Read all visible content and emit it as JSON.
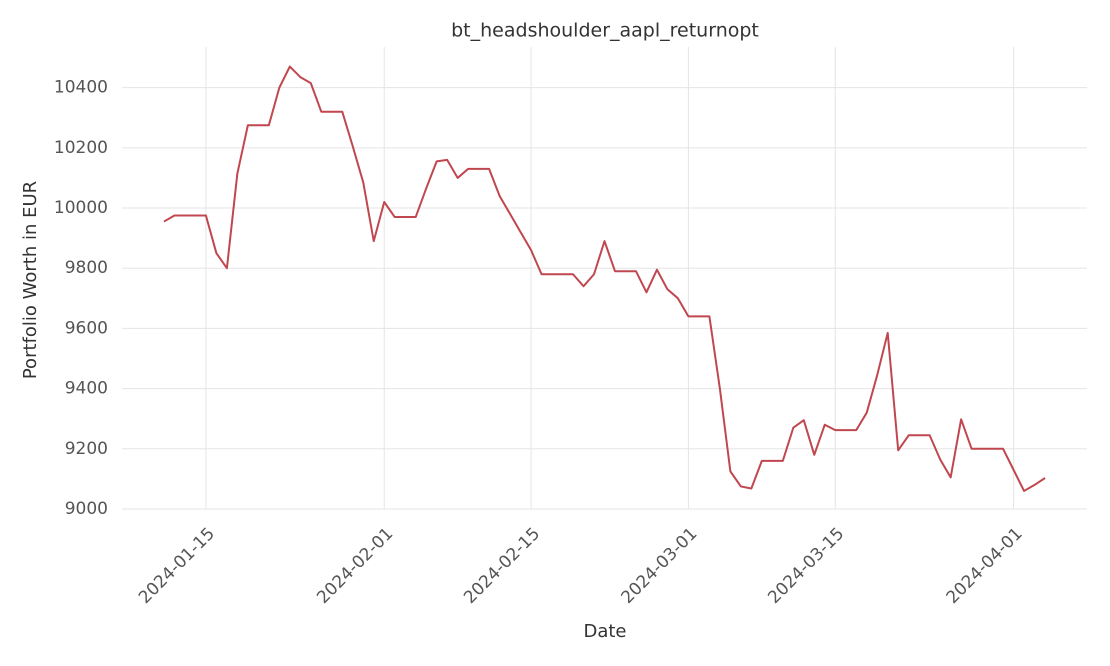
{
  "chart_data": {
    "type": "line",
    "title": "bt_headshoulder_aapl_returnopt",
    "x_label": "Date",
    "y_label": "Portfolio Worth in EUR",
    "x": [
      "2024-01-11",
      "2024-01-12",
      "2024-01-13",
      "2024-01-14",
      "2024-01-15",
      "2024-01-16",
      "2024-01-17",
      "2024-01-18",
      "2024-01-19",
      "2024-01-20",
      "2024-01-21",
      "2024-01-22",
      "2024-01-23",
      "2024-01-24",
      "2024-01-25",
      "2024-01-26",
      "2024-01-27",
      "2024-01-28",
      "2024-01-29",
      "2024-01-30",
      "2024-01-31",
      "2024-02-01",
      "2024-02-02",
      "2024-02-03",
      "2024-02-04",
      "2024-02-05",
      "2024-02-06",
      "2024-02-07",
      "2024-02-08",
      "2024-02-09",
      "2024-02-10",
      "2024-02-11",
      "2024-02-12",
      "2024-02-13",
      "2024-02-14",
      "2024-02-15",
      "2024-02-16",
      "2024-02-17",
      "2024-02-18",
      "2024-02-19",
      "2024-02-20",
      "2024-02-21",
      "2024-02-22",
      "2024-02-23",
      "2024-02-24",
      "2024-02-25",
      "2024-02-26",
      "2024-02-27",
      "2024-02-28",
      "2024-02-29",
      "2024-03-01",
      "2024-03-02",
      "2024-03-03",
      "2024-03-04",
      "2024-03-05",
      "2024-03-06",
      "2024-03-07",
      "2024-03-08",
      "2024-03-09",
      "2024-03-10",
      "2024-03-11",
      "2024-03-12",
      "2024-03-13",
      "2024-03-14",
      "2024-03-15",
      "2024-03-16",
      "2024-03-17",
      "2024-03-18",
      "2024-03-19",
      "2024-03-20",
      "2024-03-21",
      "2024-03-22",
      "2024-03-23",
      "2024-03-24",
      "2024-03-25",
      "2024-03-26",
      "2024-03-27",
      "2024-03-28",
      "2024-03-29",
      "2024-03-30",
      "2024-03-31",
      "2024-04-01",
      "2024-04-02",
      "2024-04-03",
      "2024-04-04"
    ],
    "series": [
      {
        "color": "#c0474f",
        "values": [
          9955,
          9975,
          9975,
          9975,
          9975,
          9850,
          9800,
          10115,
          10275,
          10275,
          10275,
          10400,
          10470,
          10435,
          10415,
          10320,
          10320,
          10320,
          10205,
          10085,
          9890,
          10020,
          9970,
          9970,
          9970,
          10065,
          10155,
          10160,
          10100,
          10130,
          10130,
          10130,
          10040,
          9980,
          9920,
          9860,
          9780,
          9780,
          9780,
          9780,
          9740,
          9780,
          9890,
          9790,
          9790,
          9790,
          9720,
          9795,
          9730,
          9700,
          9640,
          9640,
          9640,
          9400,
          9125,
          9075,
          9068,
          9160,
          9160,
          9160,
          9270,
          9295,
          9180,
          9280,
          9262,
          9262,
          9262,
          9320,
          9445,
          9585,
          9195,
          9245,
          9245,
          9245,
          9165,
          9105,
          9298,
          9200,
          9200,
          9200,
          9200,
          9130,
          9060,
          9080,
          9103
        ]
      }
    ],
    "xlim": [
      "2024-01-07",
      "2024-04-08"
    ],
    "xticks": [
      "2024-01-15",
      "2024-02-01",
      "2024-02-15",
      "2024-03-01",
      "2024-03-15",
      "2024-04-01"
    ],
    "ylim": [
      9000,
      10535
    ],
    "yticks": [
      9000,
      9200,
      9400,
      9600,
      9800,
      10000,
      10200,
      10400
    ],
    "grid": true
  }
}
